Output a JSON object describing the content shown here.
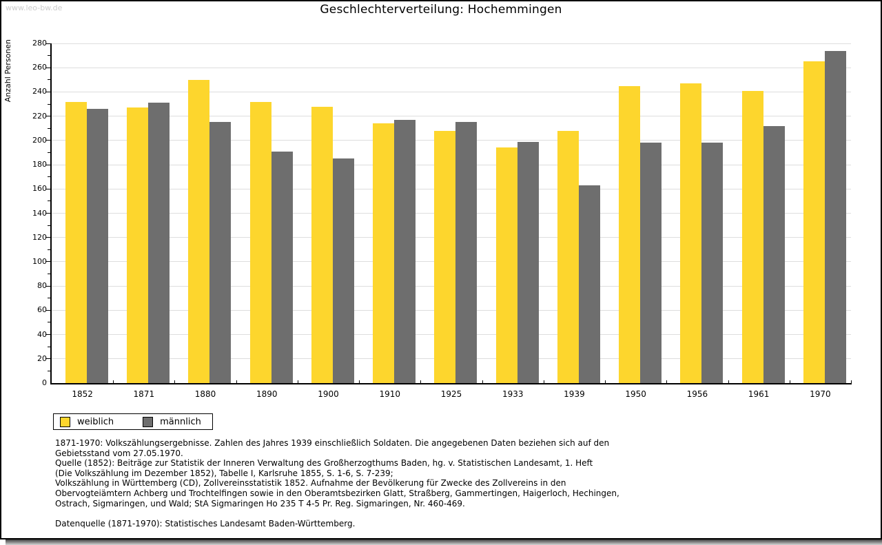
{
  "watermark": "www.leo-bw.de",
  "chart_data": {
    "type": "bar",
    "title": "Geschlechterverteilung: Hochemmingen",
    "xlabel": "",
    "ylabel": "Anzahl Personen",
    "ylim": [
      0,
      280
    ],
    "ytick_major": 20,
    "ytick_minor": 10,
    "grid": true,
    "legend_position": "bottom-left",
    "gridline_color": "#dddddd",
    "categories": [
      "1852",
      "1871",
      "1880",
      "1890",
      "1900",
      "1910",
      "1925",
      "1933",
      "1939",
      "1950",
      "1956",
      "1961",
      "1970"
    ],
    "series": [
      {
        "name": "weiblich",
        "color": "#FDD62D",
        "values": [
          232,
          227,
          250,
          232,
          228,
          214,
          208,
          194,
          208,
          245,
          247,
          241,
          265
        ]
      },
      {
        "name": "männlich",
        "color": "#6E6E6E",
        "values": [
          226,
          231,
          215,
          191,
          185,
          217,
          215,
          199,
          163,
          198,
          198,
          212,
          274
        ]
      }
    ]
  },
  "footer": {
    "lines": [
      "1871-1970: Volkszählungsergebnisse. Zahlen des Jahres 1939 einschließlich Soldaten. Die angegebenen Daten beziehen sich auf den",
      "Gebietsstand vom 27.05.1970.",
      "Quelle (1852): Beiträge zur Statistik der Inneren Verwaltung des Großherzogthums Baden, hg. v. Statistischen Landesamt, 1. Heft",
      "(Die Volkszählung im Dezember 1852), Tabelle I, Karlsruhe 1855, S. 1-6, S. 7-239;",
      "Volkszählung in Württemberg (CD), Zollvereinsstatistik 1852. Aufnahme der Bevölkerung für Zwecke des Zollvereins in den",
      "Obervogteiämtern Achberg und Trochtelfingen sowie in den Oberamtsbezirken Glatt, Straßberg, Gammertingen, Haigerloch, Hechingen,",
      "Ostrach, Sigmaringen, und Wald; StA Sigmaringen Ho 235 T 4-5 Pr. Reg. Sigmaringen, Nr. 460-469.",
      "",
      "Datenquelle (1871-1970): Statistisches Landesamt Baden-Württemberg."
    ]
  }
}
